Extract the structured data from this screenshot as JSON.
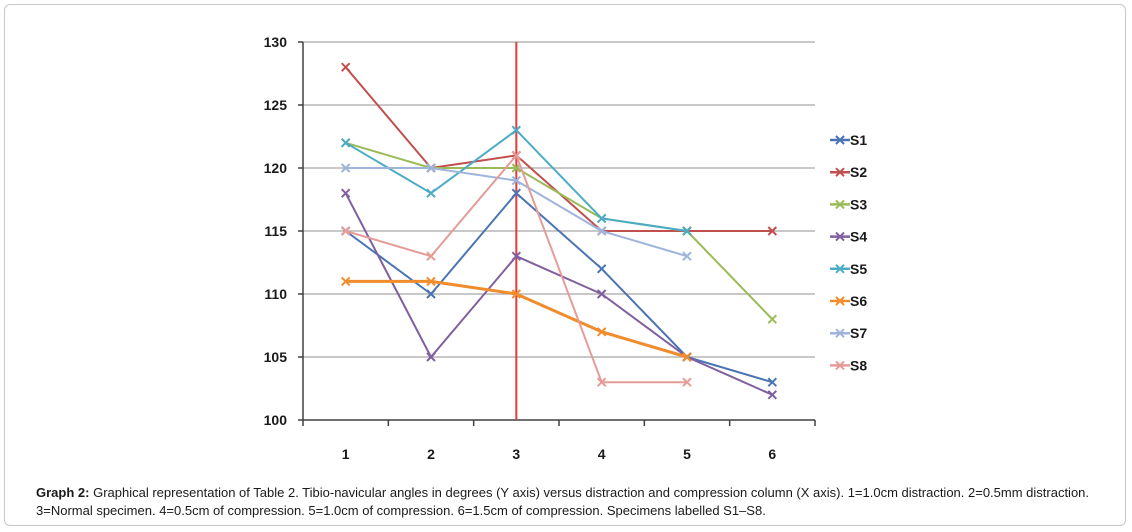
{
  "chart_data": {
    "type": "line",
    "title": "",
    "xlabel": "",
    "ylabel": "",
    "categories": [
      "1",
      "2",
      "3",
      "4",
      "5",
      "6"
    ],
    "ylim": [
      100,
      130
    ],
    "yticks": [
      "100",
      "105",
      "110",
      "115",
      "120",
      "125",
      "130"
    ],
    "grid": "horizontal",
    "legend_position": "right",
    "vertical_marker_at": "3",
    "series": [
      {
        "name": "S1",
        "color": "#4a74b4",
        "values": [
          115,
          110,
          118,
          112,
          105,
          103
        ]
      },
      {
        "name": "S2",
        "color": "#c0504d",
        "values": [
          128,
          120,
          121,
          115,
          115,
          115
        ]
      },
      {
        "name": "S3",
        "color": "#9bbb59",
        "values": [
          122,
          120,
          120,
          116,
          115,
          108
        ]
      },
      {
        "name": "S4",
        "color": "#7f5f9f",
        "values": [
          118,
          105,
          113,
          110,
          105,
          102
        ]
      },
      {
        "name": "S5",
        "color": "#4bacc6",
        "values": [
          122,
          118,
          123,
          116,
          115,
          null
        ]
      },
      {
        "name": "S6",
        "color": "#f08c2c",
        "values": [
          111,
          111,
          110,
          107,
          105,
          null
        ]
      },
      {
        "name": "S7",
        "color": "#9fb4dc",
        "values": [
          120,
          120,
          119,
          115,
          113,
          null
        ]
      },
      {
        "name": "S8",
        "color": "#e59c98",
        "values": [
          115,
          113,
          121,
          103,
          103,
          null
        ]
      }
    ],
    "marker_line_color": "#e03c3c",
    "grid_color": "#a6a6a6",
    "axis_color": "#404040"
  },
  "caption": {
    "label": "Graph 2:",
    "text": " Graphical representation of Table 2.  Tibio-navicular angles in degrees (Y axis) versus distraction and compression column (X axis).  1=1.0cm distraction.  2=0.5mm distraction.  3=Normal specimen.  4=0.5cm of compression.  5=1.0cm of compression.  6=1.5cm of compression.  Specimens labelled S1–S8."
  }
}
